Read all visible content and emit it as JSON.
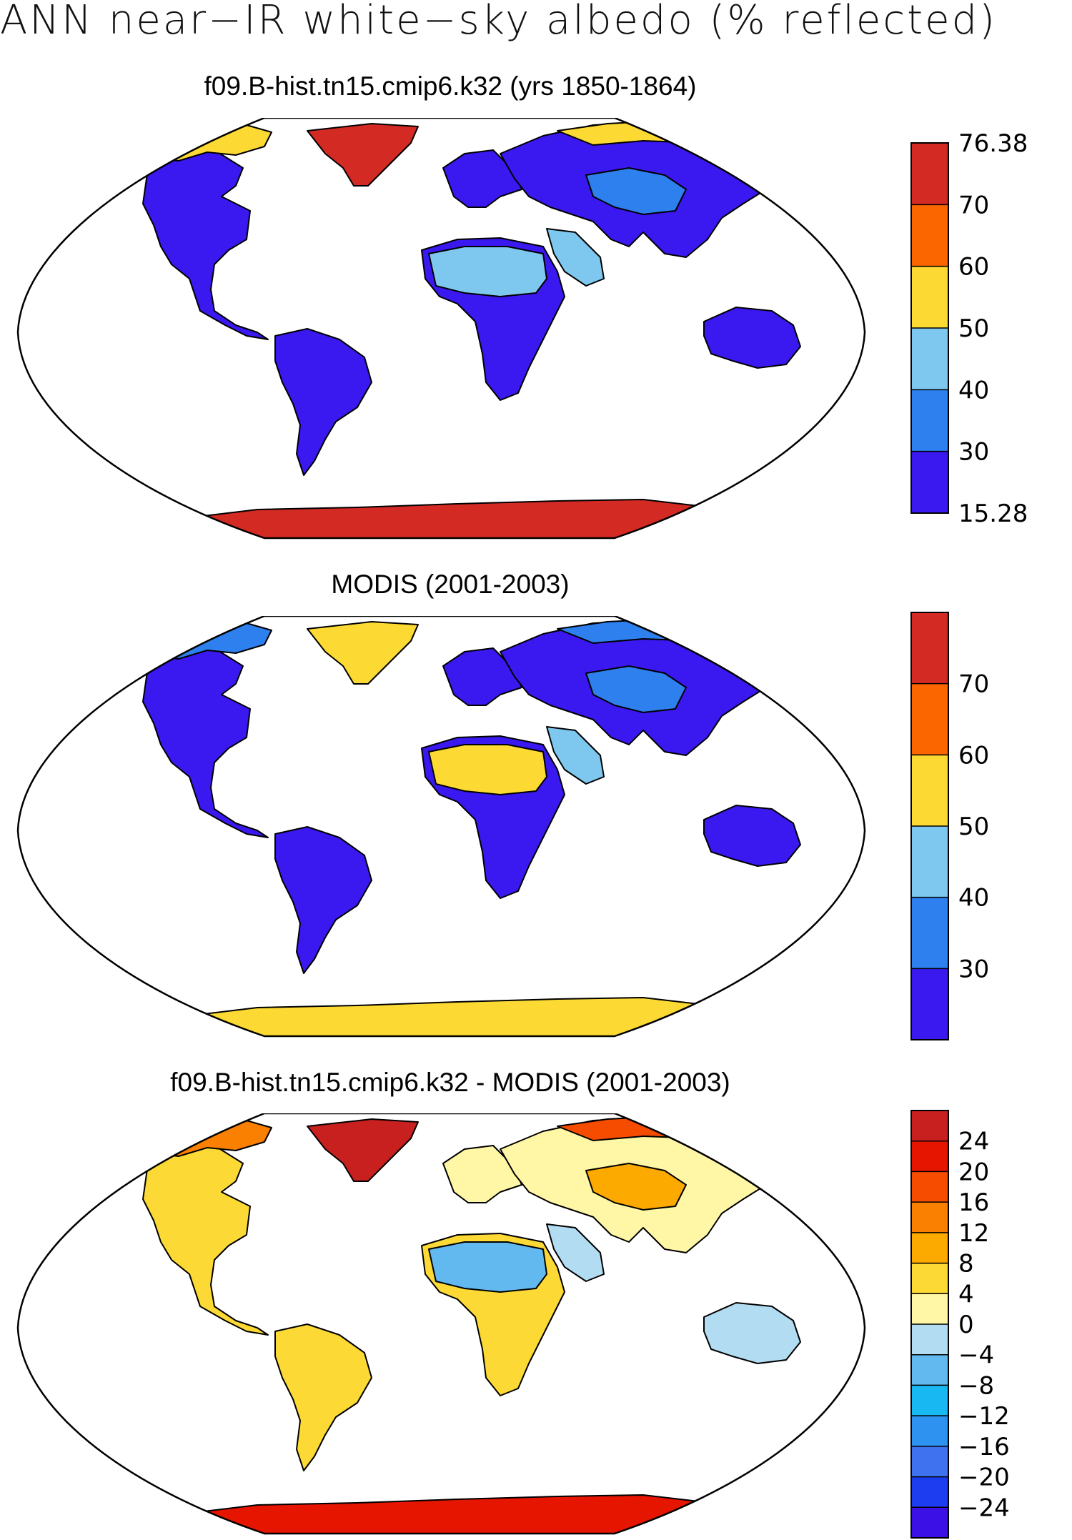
{
  "title": "ANN near−IR white−sky albedo (% reflected)",
  "panels": [
    {
      "title": "f09.B-hist.tn15.cmip6.k32 (yrs 1850-1864)",
      "colorbar": {
        "colors": [
          "#3a18f0",
          "#2e80ee",
          "#7ec8ef",
          "#fcd933",
          "#fc6600",
          "#d42a24"
        ],
        "labels": [
          "15.28",
          "30",
          "40",
          "50",
          "60",
          "70",
          "76.38"
        ]
      },
      "regions": {
        "north_america": "#3a18f0",
        "canadian_arctic": "#fcd933",
        "greenland": "#d42a24",
        "south_america": "#3a18f0",
        "europe": "#3a18f0",
        "africa": "#3a18f0",
        "sahara": "#7ec8ef",
        "arabia": "#7ec8ef",
        "asia": "#3a18f0",
        "siberia_arctic": "#fcd933",
        "central_asia": "#2e80ee",
        "australia": "#3a18f0",
        "antarctica": "#d42a24"
      }
    },
    {
      "title": "MODIS (2001-2003)",
      "colorbar": {
        "colors": [
          "#3a18f0",
          "#2e80ee",
          "#7ec8ef",
          "#fcd933",
          "#fc6600",
          "#d42a24"
        ],
        "labels": [
          "",
          "30",
          "40",
          "50",
          "60",
          "70",
          ""
        ]
      },
      "regions": {
        "north_america": "#3a18f0",
        "canadian_arctic": "#2e80ee",
        "greenland": "#fcd933",
        "south_america": "#3a18f0",
        "europe": "#3a18f0",
        "africa": "#3a18f0",
        "sahara": "#fcd933",
        "arabia": "#7ec8ef",
        "asia": "#3a18f0",
        "siberia_arctic": "#2e80ee",
        "central_asia": "#2e80ee",
        "australia": "#3a18f0",
        "antarctica": "#fcd933"
      }
    },
    {
      "title": "f09.B-hist.tn15.cmip6.k32 - MODIS (2001-2003)",
      "colorbar": {
        "colors": [
          "#3a10e6",
          "#1d3ef0",
          "#3f72ef",
          "#2d92f0",
          "#18b8f2",
          "#62b9ef",
          "#b2dcf2",
          "#fff7a6",
          "#fcd935",
          "#fcaa00",
          "#f98000",
          "#f54c00",
          "#e51500",
          "#c81f1f"
        ],
        "labels": [
          "",
          "−24",
          "−20",
          "−16",
          "−12",
          "−8",
          "−4",
          "0",
          "4",
          "8",
          "12",
          "16",
          "20",
          "24",
          ""
        ]
      },
      "regions": {
        "north_america": "#fcd935",
        "canadian_arctic": "#f98000",
        "greenland": "#c81f1f",
        "south_america": "#fcd935",
        "europe": "#fff7a6",
        "africa": "#fcd935",
        "sahara": "#62b9ef",
        "arabia": "#b2dcf2",
        "asia": "#fff7a6",
        "siberia_arctic": "#f54c00",
        "central_asia": "#fcaa00",
        "australia": "#b2dcf2",
        "antarctica": "#e51500"
      }
    }
  ]
}
